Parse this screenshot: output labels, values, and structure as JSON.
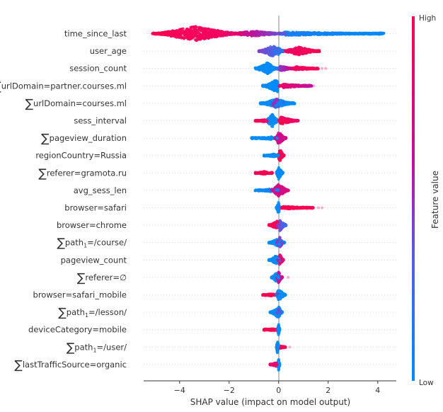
{
  "chart_data": {
    "type": "scatter",
    "subtype": "shap-beeswarm",
    "xlabel": "SHAP value (impact on model output)",
    "xlim": [
      -5.45,
      4.75
    ],
    "xticks": [
      -4,
      -2,
      0,
      2,
      4
    ],
    "xtick_labels": [
      "−4",
      "−2",
      "0",
      "2",
      "4"
    ],
    "grid": "dotted horizontal per feature",
    "colorbar": {
      "label": "Feature value",
      "high": "High",
      "low": "Low",
      "high_color": "#ff0052",
      "low_color": "#008bfb"
    },
    "features": [
      {
        "sum": false,
        "name": "time_since_last",
        "clusters": [
          {
            "min": -5.1,
            "max": -1.5,
            "peak": -3.4,
            "density": 1,
            "fv": [
              1,
              0.9
            ]
          },
          {
            "min": -2.2,
            "max": 0.3,
            "peak": -1,
            "density": 0.35,
            "fv": [
              0.8,
              0.35
            ]
          },
          {
            "min": 0,
            "max": 4.25,
            "peak": 0.3,
            "density": 0.25,
            "fv": [
              0.1,
              0
            ]
          }
        ],
        "outliers": []
      },
      {
        "sum": false,
        "name": "user_age",
        "clusters": [
          {
            "min": -0.8,
            "max": 0.2,
            "peak": -0.25,
            "density": 0.75,
            "fv": [
              0.45,
              0.2
            ]
          },
          {
            "min": -0.15,
            "max": 0.15,
            "peak": 0,
            "density": 0.5,
            "fv": [
              0.05,
              0.05
            ]
          },
          {
            "min": 0.15,
            "max": 1.65,
            "peak": 0.8,
            "density": 0.55,
            "fv": [
              0.9,
              1
            ]
          }
        ],
        "outliers": []
      },
      {
        "sum": false,
        "name": "session_count",
        "clusters": [
          {
            "min": -0.95,
            "max": -0.05,
            "peak": -0.45,
            "density": 0.8,
            "fv": [
              0,
              0
            ]
          },
          {
            "min": -0.1,
            "max": 0.6,
            "peak": 0.1,
            "density": 0.35,
            "fv": [
              0.4,
              0.7
            ]
          },
          {
            "min": 0.5,
            "max": 1.6,
            "peak": 0.7,
            "density": 0.25,
            "fv": [
              0.9,
              1
            ]
          }
        ],
        "outliers": [
          {
            "x": 1.75,
            "fv": 1
          },
          {
            "x": 1.9,
            "fv": 1
          }
        ]
      },
      {
        "sum": true,
        "name": "urlDomain=partner.courses.ml",
        "clusters": [
          {
            "min": -0.65,
            "max": 0,
            "peak": -0.05,
            "density": 0.9,
            "fv": [
              0,
              0
            ]
          },
          {
            "min": 0,
            "max": 1.35,
            "peak": 0.2,
            "density": 0.25,
            "fv": [
              0.9,
              0.6
            ]
          }
        ],
        "outliers": [
          {
            "x": 1.42,
            "fv": 0.8
          }
        ]
      },
      {
        "sum": true,
        "name": "urlDomain=courses.ml",
        "clusters": [
          {
            "min": -0.75,
            "max": 0.65,
            "peak": -0.1,
            "density": 0.6,
            "fv": [
              0,
              0
            ]
          },
          {
            "min": -0.3,
            "max": 0.2,
            "peak": -0.1,
            "density": 0.75,
            "fv": [
              0.5,
              0.5
            ]
          }
        ],
        "outliers": []
      },
      {
        "sum": false,
        "name": "sess_interval",
        "clusters": [
          {
            "min": -0.95,
            "max": -0.4,
            "peak": -0.6,
            "density": 0.15,
            "fv": [
              1,
              0.9
            ]
          },
          {
            "min": -0.55,
            "max": 0,
            "peak": -0.25,
            "density": 0.9,
            "fv": [
              0,
              0
            ]
          },
          {
            "min": 0,
            "max": 0.8,
            "peak": 0.1,
            "density": 0.5,
            "fv": [
              1,
              0.9
            ]
          }
        ],
        "outliers": []
      },
      {
        "sum": true,
        "name": "pageview_duration",
        "clusters": [
          {
            "min": -1.1,
            "max": 0,
            "peak": -0.3,
            "density": 0.2,
            "fv": [
              0,
              0
            ]
          },
          {
            "min": -0.15,
            "max": 0.3,
            "peak": 0,
            "density": 0.85,
            "fv": [
              0.7,
              0.7
            ]
          }
        ],
        "outliers": []
      },
      {
        "sum": false,
        "name": "regionCountry=Russia",
        "clusters": [
          {
            "min": -0.6,
            "max": 0,
            "peak": -0.2,
            "density": 0.2,
            "fv": [
              0,
              0
            ]
          },
          {
            "min": -0.05,
            "max": 0.22,
            "peak": 0.05,
            "density": 0.9,
            "fv": [
              1,
              1
            ]
          }
        ],
        "outliers": []
      },
      {
        "sum": true,
        "name": "referer=gramota.ru",
        "clusters": [
          {
            "min": -0.95,
            "max": -0.25,
            "peak": -0.6,
            "density": 0.2,
            "fv": [
              1,
              1
            ]
          },
          {
            "min": -0.1,
            "max": 0.18,
            "peak": 0,
            "density": 0.9,
            "fv": [
              0,
              0
            ]
          }
        ],
        "outliers": []
      },
      {
        "sum": false,
        "name": "avg_sess_len",
        "clusters": [
          {
            "min": -0.95,
            "max": 0,
            "peak": -0.3,
            "density": 0.2,
            "fv": [
              0,
              0.1
            ]
          },
          {
            "min": -0.3,
            "max": 0.4,
            "peak": 0,
            "density": 0.9,
            "fv": [
              0.7,
              0.75
            ]
          }
        ],
        "outliers": []
      },
      {
        "sum": false,
        "name": "browser=safari",
        "clusters": [
          {
            "min": -0.1,
            "max": 0.05,
            "peak": 0,
            "density": 0.9,
            "fv": [
              0,
              0
            ]
          },
          {
            "min": 0.1,
            "max": 1.4,
            "peak": 0.2,
            "density": 0.2,
            "fv": [
              1,
              1
            ]
          }
        ],
        "outliers": [
          {
            "x": 1.6,
            "fv": 1
          },
          {
            "x": 1.75,
            "fv": 1
          }
        ]
      },
      {
        "sum": false,
        "name": "browser=chrome",
        "clusters": [
          {
            "min": -0.4,
            "max": -0.02,
            "peak": -0.05,
            "density": 0.6,
            "fv": [
              1,
              0.95
            ]
          },
          {
            "min": -0.1,
            "max": 0.3,
            "peak": 0.05,
            "density": 0.8,
            "fv": [
              0.5,
              0.2
            ]
          }
        ],
        "outliers": []
      },
      {
        "sum": true,
        "name": "path",
        "sub": "1",
        "rest": "=/course/",
        "clusters": [
          {
            "min": -0.4,
            "max": 0.25,
            "peak": -0.05,
            "density": 0.5,
            "fv": [
              0,
              0
            ]
          },
          {
            "min": -0.1,
            "max": 0.2,
            "peak": 0.05,
            "density": 0.8,
            "fv": [
              0.45,
              0.45
            ]
          }
        ],
        "outliers": []
      },
      {
        "sum": false,
        "name": "pageview_count",
        "clusters": [
          {
            "min": -0.4,
            "max": 0.1,
            "peak": -0.1,
            "density": 0.6,
            "fv": [
              0,
              0
            ]
          },
          {
            "min": -0.05,
            "max": 0.2,
            "peak": 0.05,
            "density": 0.8,
            "fv": [
              0.8,
              0.8
            ]
          }
        ],
        "outliers": []
      },
      {
        "sum": true,
        "name": "referer=∅",
        "clusters": [
          {
            "min": -0.3,
            "max": 0.1,
            "peak": -0.1,
            "density": 0.6,
            "fv": [
              0,
              0
            ]
          },
          {
            "min": -0.1,
            "max": 0.15,
            "peak": 0,
            "density": 0.8,
            "fv": [
              0.65,
              0.65
            ]
          }
        ],
        "outliers": [
          {
            "x": 0.38,
            "fv": 0.9
          }
        ]
      },
      {
        "sum": false,
        "name": "browser=safari_mobile",
        "clusters": [
          {
            "min": -0.65,
            "max": -0.05,
            "peak": -0.3,
            "density": 0.15,
            "fv": [
              1,
              1
            ]
          },
          {
            "min": -0.1,
            "max": 0.28,
            "peak": 0,
            "density": 0.85,
            "fv": [
              0,
              0
            ]
          }
        ],
        "outliers": []
      },
      {
        "sum": true,
        "name": "path",
        "sub": "1",
        "rest": "=/lesson/",
        "clusters": [
          {
            "min": -0.35,
            "max": 0.15,
            "peak": 0,
            "density": 0.8,
            "fv": [
              0,
              0
            ]
          },
          {
            "min": -0.1,
            "max": 0.1,
            "peak": 0,
            "density": 0.5,
            "fv": [
              0.4,
              0.4
            ]
          }
        ],
        "outliers": []
      },
      {
        "sum": false,
        "name": "deviceCategory=mobile",
        "clusters": [
          {
            "min": -0.6,
            "max": -0.05,
            "peak": -0.2,
            "density": 0.15,
            "fv": [
              1,
              1
            ]
          },
          {
            "min": -0.05,
            "max": 0.05,
            "peak": 0,
            "density": 0.8,
            "fv": [
              0,
              0
            ]
          }
        ],
        "outliers": []
      },
      {
        "sum": true,
        "name": "path",
        "sub": "1",
        "rest": "=/user/",
        "clusters": [
          {
            "min": -0.1,
            "max": 0.05,
            "peak": -0.05,
            "density": 0.8,
            "fv": [
              0,
              0
            ]
          },
          {
            "min": 0.05,
            "max": 0.28,
            "peak": 0.05,
            "density": 0.2,
            "fv": [
              1,
              1
            ]
          }
        ],
        "outliers": [
          {
            "x": 0.45,
            "fv": 1
          }
        ]
      },
      {
        "sum": true,
        "name": "lastTrafficSource=organic",
        "clusters": [
          {
            "min": -0.35,
            "max": -0.05,
            "peak": -0.1,
            "density": 0.25,
            "fv": [
              0.85,
              0.85
            ]
          },
          {
            "min": -0.05,
            "max": 0.05,
            "peak": 0,
            "density": 0.85,
            "fv": [
              0,
              0
            ]
          }
        ],
        "outliers": []
      }
    ]
  }
}
